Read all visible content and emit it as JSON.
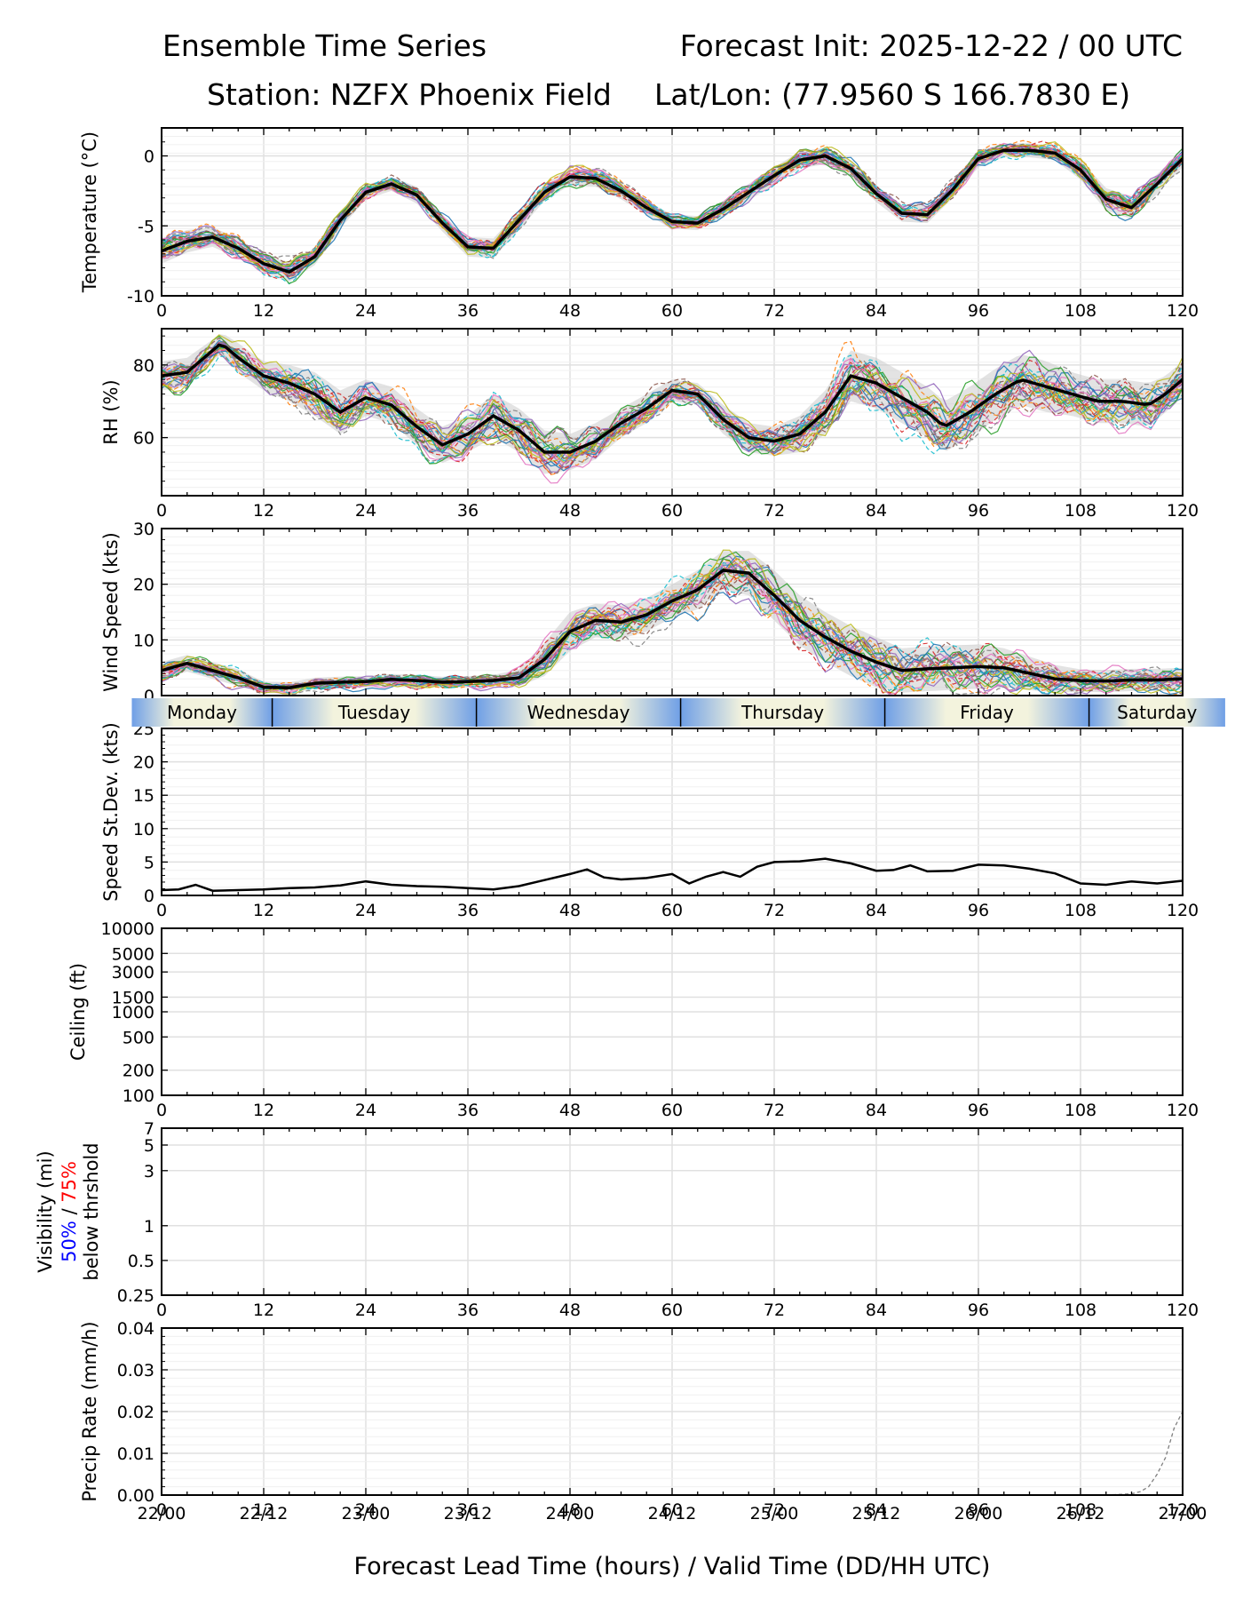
{
  "header": {
    "title_left": "Ensemble Time Series",
    "title_right": "Forecast Init: 2025-12-22 / 00 UTC",
    "station": "Station: NZFX Phoenix Field",
    "latlon": "Lat/Lon: (77.9560 S 166.7830 E)"
  },
  "xaxis": {
    "ticks": [
      0,
      12,
      24,
      36,
      48,
      60,
      72,
      84,
      96,
      108,
      120
    ],
    "valid_times": [
      "22/00",
      "22/12",
      "23/00",
      "23/12",
      "24/00",
      "24/12",
      "25/00",
      "25/12",
      "26/00",
      "26/12",
      "27/00"
    ],
    "label": "Forecast Lead Time (hours) / Valid Time (DD/HH UTC)"
  },
  "day_bar": {
    "days": [
      {
        "name": "Monday",
        "start": -3.5,
        "end": 13
      },
      {
        "name": "Tuesday",
        "start": 13,
        "end": 37
      },
      {
        "name": "Wednesday",
        "start": 37,
        "end": 61
      },
      {
        "name": "Thursday",
        "start": 61,
        "end": 85
      },
      {
        "name": "Friday",
        "start": 85,
        "end": 109
      },
      {
        "name": "Saturday",
        "start": 109,
        "end": 125
      }
    ]
  },
  "colors": {
    "mean": "#000000",
    "spread": "#cccccc",
    "grid": "#e0e0e0",
    "day_light": "#f3f3dd",
    "day_dark": "#6f9fe6",
    "vis_50": "#0000ff",
    "vis_75": "#ff0000",
    "members": [
      "#1f77b4",
      "#ff7f0e",
      "#2ca02c",
      "#d62728",
      "#9467bd",
      "#8c564b",
      "#e377c2",
      "#7f7f7f",
      "#bcbd22",
      "#17becf"
    ]
  },
  "chart_data": [
    {
      "type": "line",
      "name": "temperature",
      "ylabel": "Temperature (°C)",
      "ylim": [
        -10,
        2
      ],
      "yticks": [
        0,
        -5,
        -10
      ],
      "x": [
        0,
        3,
        6,
        9,
        12,
        15,
        18,
        21,
        24,
        27,
        30,
        33,
        36,
        39,
        42,
        45,
        48,
        51,
        54,
        57,
        60,
        63,
        66,
        69,
        72,
        75,
        78,
        81,
        84,
        87,
        90,
        93,
        96,
        99,
        102,
        105,
        108,
        111,
        114,
        117,
        120
      ],
      "mean": [
        -6.8,
        -6.1,
        -5.8,
        -6.6,
        -7.7,
        -8.3,
        -7.2,
        -4.6,
        -2.6,
        -2.0,
        -2.8,
        -4.8,
        -6.5,
        -6.6,
        -4.6,
        -2.6,
        -1.5,
        -1.6,
        -2.5,
        -3.7,
        -4.7,
        -4.8,
        -3.8,
        -2.6,
        -1.4,
        -0.3,
        0.0,
        -0.9,
        -2.7,
        -4.1,
        -4.2,
        -2.4,
        -0.2,
        0.4,
        0.4,
        0.2,
        -1.0,
        -3.1,
        -3.7,
        -2.0,
        -0.2
      ],
      "spread": [
        0.9,
        0.8,
        0.7,
        0.7,
        0.6,
        0.7,
        0.6,
        0.6,
        0.5,
        0.5,
        0.6,
        0.6,
        0.7,
        0.7,
        0.7,
        0.6,
        0.6,
        0.6,
        0.6,
        0.5,
        0.5,
        0.5,
        0.6,
        0.6,
        0.6,
        0.6,
        0.6,
        0.6,
        0.6,
        0.6,
        0.6,
        0.6,
        0.6,
        0.5,
        0.5,
        0.5,
        0.7,
        0.8,
        0.8,
        0.7,
        0.6
      ]
    },
    {
      "type": "line",
      "name": "relative_humidity",
      "ylabel": "RH (%)",
      "ylim": [
        44,
        90
      ],
      "yticks": [
        80,
        60
      ],
      "x": [
        0,
        3,
        6,
        7,
        9,
        12,
        15,
        18,
        21,
        24,
        27,
        30,
        33,
        36,
        39,
        42,
        45,
        48,
        51,
        54,
        57,
        60,
        63,
        66,
        69,
        72,
        75,
        78,
        81,
        84,
        87,
        90,
        92,
        95,
        98,
        101,
        104,
        107,
        110,
        113,
        116,
        118,
        120
      ],
      "mean": [
        77,
        78,
        84,
        86,
        82,
        77,
        75,
        72,
        67,
        71,
        69,
        63,
        58,
        61,
        66,
        62,
        56,
        56,
        59,
        64,
        68,
        73,
        72,
        65,
        60,
        59,
        61,
        67,
        77,
        75,
        71,
        67,
        63,
        67,
        72,
        76,
        74,
        72,
        70,
        70,
        69,
        72,
        76
      ],
      "spread": [
        4,
        4,
        3,
        3,
        4,
        4,
        5,
        6,
        6,
        5,
        5,
        5,
        5,
        5,
        6,
        6,
        6,
        5,
        5,
        4,
        4,
        3,
        3,
        4,
        4,
        4,
        5,
        6,
        7,
        7,
        7,
        7,
        7,
        7,
        7,
        7,
        7,
        6,
        6,
        6,
        6,
        5,
        5
      ]
    },
    {
      "type": "line",
      "name": "wind_speed",
      "ylabel": "Wind Speed (kts)",
      "ylim": [
        0,
        30
      ],
      "yticks": [
        0,
        10,
        20,
        30
      ],
      "x": [
        0,
        3,
        6,
        9,
        12,
        15,
        18,
        21,
        24,
        27,
        30,
        33,
        36,
        39,
        42,
        45,
        48,
        51,
        54,
        57,
        60,
        63,
        66,
        69,
        72,
        75,
        78,
        81,
        84,
        87,
        90,
        93,
        96,
        99,
        102,
        105,
        108,
        111,
        114,
        117,
        120
      ],
      "mean": [
        4.5,
        5.8,
        4.5,
        3.2,
        1.5,
        1.4,
        2.2,
        2.4,
        2.5,
        2.9,
        2.7,
        2.4,
        2.5,
        2.7,
        3.2,
        6.5,
        11.5,
        13.5,
        13.2,
        14.5,
        17,
        19,
        22.5,
        22,
        18,
        13.5,
        10.5,
        8,
        6,
        4.5,
        4.8,
        5.0,
        5.2,
        5.0,
        4.0,
        3.0,
        2.7,
        2.6,
        2.8,
        2.8,
        3.0
      ],
      "spread": [
        1.5,
        1.5,
        1.5,
        1.5,
        1.0,
        1.0,
        1.0,
        1.0,
        1.0,
        1.0,
        1.0,
        1.0,
        1.0,
        1.0,
        1.5,
        3.0,
        3.5,
        3.0,
        3.0,
        3.0,
        3.0,
        3.5,
        3.5,
        4.0,
        4.5,
        4.5,
        4.5,
        4.5,
        4.5,
        4.0,
        4.0,
        4.0,
        4.0,
        3.5,
        3.0,
        2.5,
        2.0,
        2.0,
        2.0,
        2.0,
        2.0
      ]
    },
    {
      "type": "line",
      "name": "speed_stdev",
      "ylabel": "Speed St.Dev. (kts)",
      "ylim": [
        0,
        25
      ],
      "yticks": [
        0,
        5,
        10,
        15,
        20,
        25
      ],
      "x": [
        0,
        2,
        4,
        6,
        9,
        12,
        15,
        18,
        21,
        24,
        27,
        30,
        33,
        36,
        39,
        42,
        45,
        48,
        50,
        52,
        54,
        57,
        60,
        62,
        64,
        66,
        68,
        70,
        72,
        75,
        78,
        81,
        84,
        86,
        88,
        90,
        93,
        96,
        99,
        102,
        105,
        108,
        111,
        114,
        117,
        120
      ],
      "values": [
        0.8,
        0.9,
        1.6,
        0.7,
        0.8,
        0.9,
        1.1,
        1.2,
        1.5,
        2.1,
        1.6,
        1.4,
        1.3,
        1.1,
        0.9,
        1.4,
        2.3,
        3.2,
        3.9,
        2.7,
        2.4,
        2.6,
        3.2,
        1.8,
        2.8,
        3.5,
        2.8,
        4.3,
        5.0,
        5.1,
        5.5,
        4.8,
        3.7,
        3.8,
        4.5,
        3.6,
        3.7,
        4.6,
        4.5,
        4.0,
        3.3,
        1.8,
        1.6,
        2.1,
        1.8,
        2.2
      ]
    },
    {
      "type": "line",
      "name": "ceiling",
      "ylabel": "Ceiling (ft)",
      "scale": "log",
      "ylim": [
        100,
        10000
      ],
      "yticks": [
        100,
        200,
        500,
        1000,
        1500,
        3000,
        5000,
        10000
      ],
      "series": []
    },
    {
      "type": "line",
      "name": "visibility",
      "ylabel_parts": [
        "Visibility (mi)",
        "50%",
        "/",
        "75%",
        "below thrshold"
      ],
      "scale": "log",
      "ylim": [
        0.25,
        7
      ],
      "yticks": [
        0.25,
        0.5,
        1,
        3,
        5,
        7
      ],
      "series": []
    },
    {
      "type": "line",
      "name": "precip_rate",
      "ylabel": "Precip Rate (mm/h)",
      "ylim": [
        0,
        0.04
      ],
      "yticks": [
        0.0,
        0.01,
        0.02,
        0.03,
        0.04
      ],
      "ytick_labels": [
        "0.00",
        "0.01",
        "0.02",
        "0.03",
        "0.04"
      ],
      "x": [
        0,
        110,
        112,
        114,
        115,
        116,
        117,
        118,
        119,
        120
      ],
      "values": [
        0,
        0,
        0.0001,
        0.0003,
        0.0008,
        0.002,
        0.005,
        0.009,
        0.016,
        0.02
      ]
    }
  ]
}
